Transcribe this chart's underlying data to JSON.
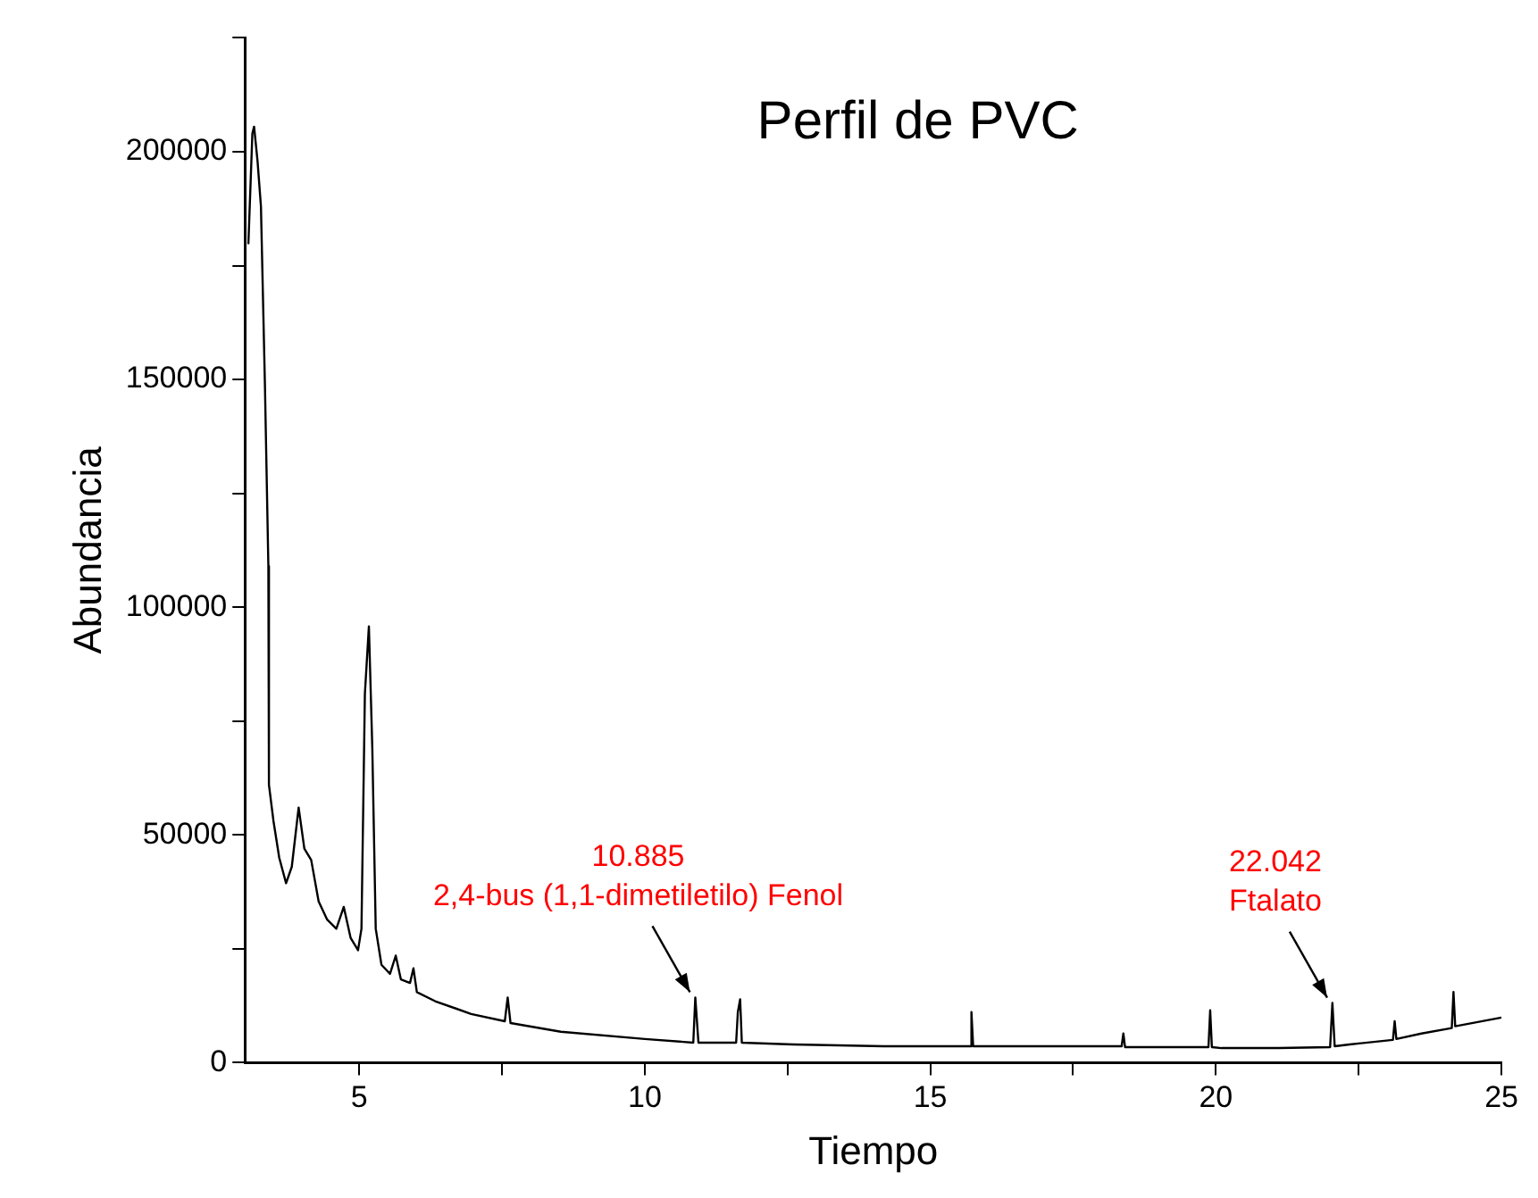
{
  "chart_data": {
    "type": "line",
    "title": "Perfil de PVC",
    "xlabel": "Tiempo",
    "ylabel": "Abundancia",
    "x": [
      3.06,
      3.13,
      3.16,
      3.22,
      3.28,
      3.35,
      3.41,
      3.42,
      3.5,
      3.6,
      3.72,
      3.82,
      3.94,
      4.04,
      4.16,
      4.29,
      4.44,
      4.6,
      4.73,
      4.85,
      4.98,
      5.04,
      5.1,
      5.17,
      5.23,
      5.29,
      5.39,
      5.54,
      5.64,
      5.73,
      5.89,
      5.95,
      6.01,
      6.33,
      6.96,
      7.55,
      7.6,
      7.65,
      8.53,
      10.0,
      10.85,
      10.885,
      10.94,
      11.6,
      11.63,
      11.67,
      11.7,
      12.6,
      14.18,
      15.7,
      15.72,
      15.75,
      17.3,
      18.35,
      18.38,
      18.41,
      19.87,
      19.9,
      19.93,
      20.1,
      21.1,
      22.0,
      22.04,
      22.08,
      22.34,
      23.1,
      23.13,
      23.16,
      23.6,
      24.13,
      24.16,
      24.19,
      25.0
    ],
    "series": [
      {
        "color": "#000000",
        "values": [
          179700,
          204000,
          205500,
          198000,
          188000,
          148700,
          109000,
          61000,
          53000,
          45000,
          39400,
          43000,
          56000,
          47000,
          44500,
          35400,
          31400,
          29400,
          34200,
          27400,
          24700,
          29400,
          81000,
          95800,
          69000,
          29400,
          21500,
          19500,
          23500,
          18300,
          17500,
          20700,
          15500,
          13500,
          10700,
          9100,
          14300,
          8700,
          6800,
          5200,
          4400,
          14300,
          4400,
          4400,
          11100,
          13900,
          4400,
          4000,
          3600,
          3600,
          11100,
          3600,
          3600,
          3600,
          6400,
          3400,
          3400,
          11500,
          3400,
          3200,
          3200,
          3400,
          13100,
          3600,
          4000,
          5000,
          9100,
          5200,
          6400,
          7600,
          15500,
          8000,
          9900
        ]
      }
    ],
    "xlim": [
      3,
      25
    ],
    "xticks": [
      5,
      {
        "value": 7.5,
        "label": null
      },
      10,
      {
        "value": 12.5,
        "label": null
      },
      15,
      {
        "value": 17.5,
        "label": null
      },
      20,
      {
        "value": 22.5,
        "label": null
      },
      25
    ],
    "ylim": [
      0,
      225000
    ],
    "yticks": [
      0,
      {
        "value": 25000,
        "label": null
      },
      50000,
      {
        "value": 75000,
        "label": null
      },
      100000,
      {
        "value": 125000,
        "label": null
      },
      150000,
      {
        "value": 175000,
        "label": null
      },
      200000,
      {
        "value": 225000,
        "label": null
      }
    ],
    "annotations": [
      {
        "text": "10.885\n2,4-bus (1,1-dimetiletilo) Fenol",
        "x": 10.885,
        "y": 14300
      },
      {
        "text": "22.042\nFtalato",
        "x": 22.042,
        "y": 13100
      }
    ],
    "grid": false,
    "legend": false,
    "marker": "none",
    "line_style": "solid"
  }
}
